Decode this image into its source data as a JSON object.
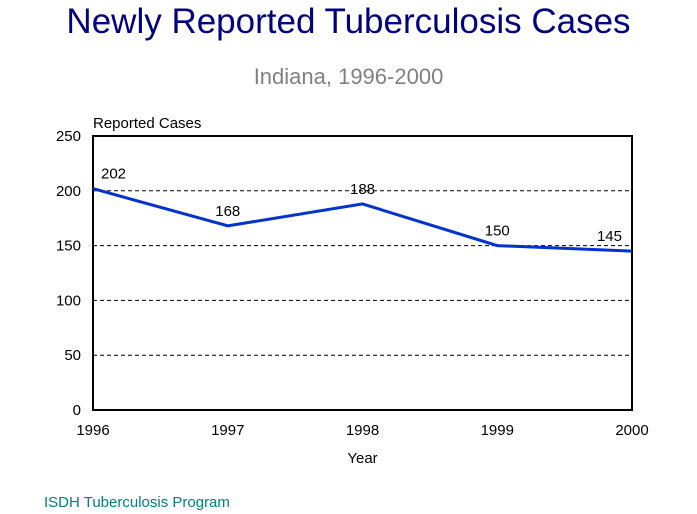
{
  "chart_data": {
    "type": "line",
    "title": "Newly Reported Tuberculosis Cases",
    "subtitle": "Indiana, 1996-2000",
    "xlabel": "Year",
    "ylabel": "Reported Cases",
    "categories": [
      "1996",
      "1997",
      "1998",
      "1999",
      "2000"
    ],
    "values": [
      202,
      168,
      188,
      150,
      145
    ],
    "data_labels": [
      "202",
      "168",
      "188",
      "150",
      "145"
    ],
    "ylim": [
      0,
      250
    ],
    "yticks": [
      "0",
      "50",
      "100",
      "150",
      "200",
      "250"
    ],
    "grid": "horizontal dashed",
    "line_color": "#0033cc",
    "title_color": "#000080",
    "subtitle_color": "#808080"
  },
  "footer": "ISDH Tuberculosis Program",
  "footer_color": "#008080"
}
